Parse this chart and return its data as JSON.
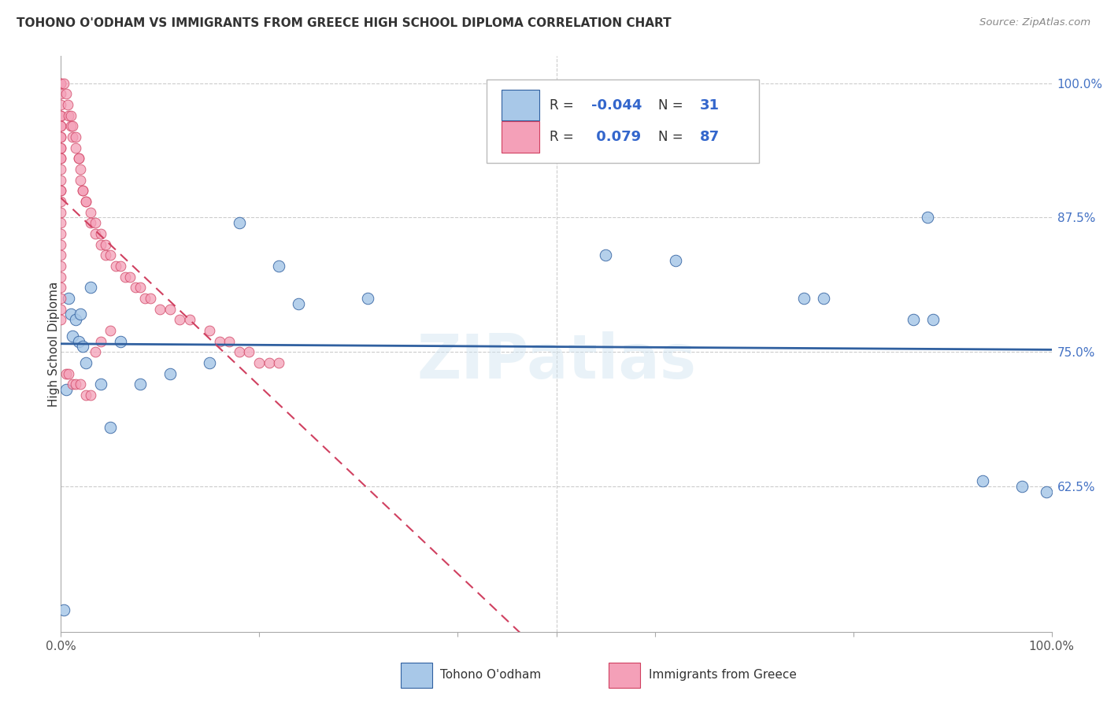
{
  "title": "TOHONO O'ODHAM VS IMMIGRANTS FROM GREECE HIGH SCHOOL DIPLOMA CORRELATION CHART",
  "source": "Source: ZipAtlas.com",
  "ylabel": "High School Diploma",
  "legend_label1": "Tohono O'odham",
  "legend_label2": "Immigrants from Greece",
  "R1": -0.044,
  "N1": 31,
  "R2": 0.079,
  "N2": 87,
  "color1": "#a8c8e8",
  "color2": "#f4a0b8",
  "trendline1_color": "#3060a0",
  "trendline2_color": "#d04060",
  "watermark": "ZIPatlas",
  "xmin": 0.0,
  "xmax": 1.0,
  "ymin": 0.49,
  "ymax": 1.025,
  "ytick_right": [
    0.625,
    0.75,
    0.875,
    1.0
  ],
  "ytick_right_labels": [
    "62.5%",
    "75.0%",
    "87.5%",
    "100.0%"
  ],
  "blue_x": [
    0.003,
    0.005,
    0.008,
    0.01,
    0.012,
    0.015,
    0.018,
    0.02,
    0.022,
    0.025,
    0.03,
    0.04,
    0.05,
    0.06,
    0.08,
    0.11,
    0.15,
    0.18,
    0.22,
    0.31,
    0.55,
    0.62,
    0.75,
    0.77,
    0.86,
    0.875,
    0.88,
    0.93,
    0.97,
    0.995,
    0.24
  ],
  "blue_y": [
    0.51,
    0.715,
    0.8,
    0.785,
    0.765,
    0.78,
    0.76,
    0.785,
    0.755,
    0.74,
    0.81,
    0.72,
    0.68,
    0.76,
    0.72,
    0.73,
    0.74,
    0.87,
    0.83,
    0.8,
    0.84,
    0.835,
    0.8,
    0.8,
    0.78,
    0.875,
    0.78,
    0.63,
    0.625,
    0.62,
    0.795
  ],
  "pink_x": [
    0.0,
    0.0,
    0.0,
    0.0,
    0.0,
    0.0,
    0.0,
    0.0,
    0.0,
    0.0,
    0.0,
    0.0,
    0.0,
    0.0,
    0.0,
    0.0,
    0.0,
    0.0,
    0.0,
    0.0,
    0.0,
    0.0,
    0.0,
    0.0,
    0.0,
    0.0,
    0.0,
    0.0,
    0.0,
    0.0,
    0.003,
    0.005,
    0.007,
    0.008,
    0.01,
    0.01,
    0.012,
    0.012,
    0.015,
    0.015,
    0.018,
    0.018,
    0.02,
    0.02,
    0.022,
    0.022,
    0.025,
    0.025,
    0.03,
    0.03,
    0.035,
    0.035,
    0.04,
    0.04,
    0.045,
    0.045,
    0.05,
    0.055,
    0.06,
    0.065,
    0.07,
    0.075,
    0.08,
    0.085,
    0.09,
    0.1,
    0.11,
    0.12,
    0.13,
    0.15,
    0.16,
    0.17,
    0.18,
    0.19,
    0.2,
    0.21,
    0.22,
    0.005,
    0.008,
    0.012,
    0.015,
    0.02,
    0.025,
    0.03,
    0.035,
    0.04,
    0.05
  ],
  "pink_y": [
    1.0,
    1.0,
    0.99,
    0.98,
    0.97,
    0.97,
    0.96,
    0.96,
    0.95,
    0.95,
    0.94,
    0.94,
    0.93,
    0.93,
    0.92,
    0.91,
    0.9,
    0.9,
    0.89,
    0.88,
    0.87,
    0.86,
    0.85,
    0.84,
    0.83,
    0.82,
    0.81,
    0.8,
    0.79,
    0.78,
    1.0,
    0.99,
    0.98,
    0.97,
    0.97,
    0.96,
    0.96,
    0.95,
    0.95,
    0.94,
    0.93,
    0.93,
    0.92,
    0.91,
    0.9,
    0.9,
    0.89,
    0.89,
    0.88,
    0.87,
    0.87,
    0.86,
    0.86,
    0.85,
    0.85,
    0.84,
    0.84,
    0.83,
    0.83,
    0.82,
    0.82,
    0.81,
    0.81,
    0.8,
    0.8,
    0.79,
    0.79,
    0.78,
    0.78,
    0.77,
    0.76,
    0.76,
    0.75,
    0.75,
    0.74,
    0.74,
    0.74,
    0.73,
    0.73,
    0.72,
    0.72,
    0.72,
    0.71,
    0.71,
    0.75,
    0.76,
    0.77
  ]
}
